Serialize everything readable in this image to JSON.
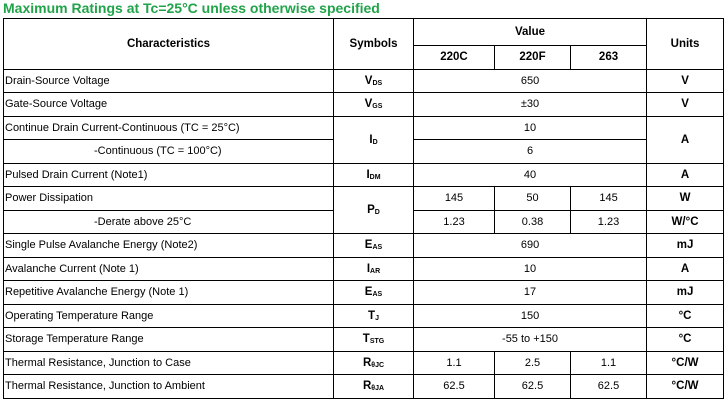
{
  "title": "Maximum Ratings at Tc=25°C unless otherwise specified",
  "table": {
    "headers": {
      "characteristics": "Characteristics",
      "symbols": "Symbols",
      "value": "Value",
      "units": "Units",
      "variants": [
        "220C",
        "220F",
        "263"
      ]
    },
    "rows": [
      {
        "characteristic": "Drain-Source Voltage",
        "symbol": {
          "main": "V",
          "sub": "DS"
        },
        "value": "650",
        "unit": "V"
      },
      {
        "characteristic": "Gate-Source Voltage",
        "symbol": {
          "main": "V",
          "sub": "GS"
        },
        "value": "±30",
        "unit": "V"
      },
      {
        "characteristic": "Continue Drain Current-Continuous (TC = 25°C)",
        "symbol": {
          "main": "I",
          "sub": "D"
        },
        "value": "10",
        "unit": "A"
      },
      {
        "characteristic": "-Continuous (TC = 100°C)",
        "value": "6"
      },
      {
        "characteristic": "Pulsed Drain Current (Note1)",
        "symbol": {
          "main": "I",
          "sub": "DM"
        },
        "value": "40",
        "unit": "A"
      },
      {
        "characteristic": "Power Dissipation",
        "symbol": {
          "main": "P",
          "sub": "D"
        },
        "values": [
          "145",
          "50",
          "145"
        ],
        "unit": "W"
      },
      {
        "characteristic": "-Derate above 25°C",
        "values": [
          "1.23",
          "0.38",
          "1.23"
        ],
        "unit": "W/°C"
      },
      {
        "characteristic": "Single Pulse Avalanche Energy (Note2)",
        "symbol": {
          "main": "E",
          "sub": "AS"
        },
        "value": "690",
        "unit": "mJ"
      },
      {
        "characteristic": "Avalanche Current (Note 1)",
        "symbol": {
          "main": "I",
          "sub": "AR"
        },
        "value": "10",
        "unit": "A"
      },
      {
        "characteristic": "Repetitive Avalanche Energy (Note 1)",
        "symbol": {
          "main": "E",
          "sub": "AS"
        },
        "value": "17",
        "unit": "mJ"
      },
      {
        "characteristic": "Operating Temperature Range",
        "symbol": {
          "main": "T",
          "sub": "J"
        },
        "value": "150",
        "unit": "°C"
      },
      {
        "characteristic": "Storage Temperature Range",
        "symbol": {
          "main": "T",
          "sub": "STG"
        },
        "value": "-55 to +150",
        "unit": "°C"
      },
      {
        "characteristic": "Thermal Resistance, Junction to Case",
        "symbol": {
          "main": "R",
          "sub": "θJC"
        },
        "values": [
          "1.1",
          "2.5",
          "1.1"
        ],
        "unit": "°C/W"
      },
      {
        "characteristic": "Thermal Resistance, Junction to Ambient",
        "symbol": {
          "main": "R",
          "sub": "θJA"
        },
        "values": [
          "62.5",
          "62.5",
          "62.5"
        ],
        "unit": "°C/W"
      }
    ]
  }
}
